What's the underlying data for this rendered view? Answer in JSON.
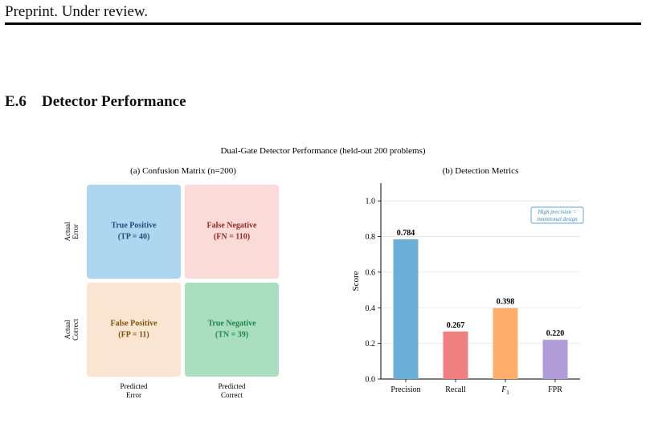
{
  "header": {
    "text": "Preprint. Under review."
  },
  "section": {
    "number": "E.6",
    "title": "Detector Performance"
  },
  "figure": {
    "suptitle": "Dual-Gate Detector Performance (held-out 200 problems)",
    "panel_a": {
      "title": "(a) Confusion Matrix (n=200)",
      "row_labels": [
        [
          "Actual",
          "Error"
        ],
        [
          "Actual",
          "Correct"
        ]
      ],
      "col_labels": [
        [
          "Predicted",
          "Error"
        ],
        [
          "Predicted",
          "Correct"
        ]
      ],
      "cells": [
        {
          "label": "True Positive",
          "value": "(TP = 40)",
          "fill": "#aed6f1",
          "text_color": "#1f4e79"
        },
        {
          "label": "False Negative",
          "value": "(FN = 110)",
          "fill": "#fadbd8",
          "text_color": "#922b21"
        },
        {
          "label": "False Positive",
          "value": "(FP = 11)",
          "fill": "#fae5d3",
          "text_color": "#7e5109"
        },
        {
          "label": "True Negative",
          "value": "(TN = 39)",
          "fill": "#a9dfbf",
          "text_color": "#1e8449"
        }
      ]
    },
    "panel_b": {
      "title": "(b) Detection Metrics",
      "annotation": [
        "High precision =",
        "intentional design"
      ],
      "annotation_color": "#2e86c1"
    }
  },
  "chart_data": {
    "type": "bar",
    "categories": [
      "Precision",
      "Recall",
      "F1",
      "FPR"
    ],
    "values": [
      0.784,
      0.267,
      0.398,
      0.22
    ],
    "value_labels": [
      "0.784",
      "0.267",
      "0.398",
      "0.220"
    ],
    "colors": [
      "#6baed6",
      "#f08080",
      "#fdae6b",
      "#b19cd9"
    ],
    "ylabel": "Score",
    "ylim": [
      0,
      1.1
    ],
    "yticks": [
      0.0,
      0.2,
      0.4,
      0.6,
      0.8,
      1.0
    ],
    "ytick_labels": [
      "0.0",
      "0.2",
      "0.4",
      "0.6",
      "0.8",
      "1.0"
    ],
    "grid": "y"
  }
}
